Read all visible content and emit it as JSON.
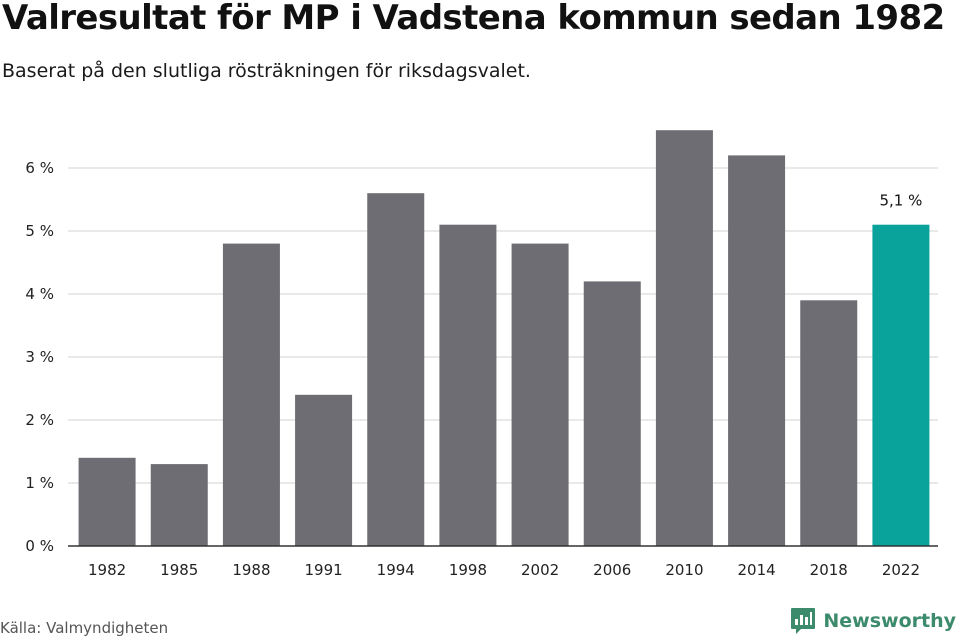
{
  "header": {
    "title": "Valresultat för MP i Vadstena kommun sedan 1982",
    "subtitle": "Baserat på den slutliga rösträkningen för riksdagsvalet."
  },
  "footer": {
    "source": "Källa: Valmyndigheten",
    "brand": "Newsworthy"
  },
  "colors": {
    "bar": "#6e6d73",
    "highlight": "#0aa39b",
    "grid": "#dcdcdc",
    "axis": "#333333",
    "brand": "#3d8b6d"
  },
  "chart_data": {
    "type": "bar",
    "title": "Valresultat för MP i Vadstena kommun sedan 1982",
    "subtitle": "Baserat på den slutliga rösträkningen för riksdagsvalet.",
    "xlabel": "",
    "ylabel": "",
    "categories": [
      "1982",
      "1985",
      "1988",
      "1991",
      "1994",
      "1998",
      "2002",
      "2006",
      "2010",
      "2014",
      "2018",
      "2022"
    ],
    "values": [
      1.4,
      1.3,
      4.8,
      2.4,
      5.6,
      5.1,
      4.8,
      4.2,
      6.6,
      6.2,
      3.9,
      5.1
    ],
    "unit": "%",
    "ylim": [
      0,
      7
    ],
    "yticks": [
      0,
      1,
      2,
      3,
      4,
      5,
      6
    ],
    "ytick_labels": [
      "0 %",
      "1 %",
      "2 %",
      "3 %",
      "4 %",
      "5 %",
      "6 %"
    ],
    "grid": true,
    "legend": "none",
    "highlight_index": 11,
    "annotations": [
      {
        "category": "2022",
        "text": "5,1 %"
      }
    ]
  }
}
